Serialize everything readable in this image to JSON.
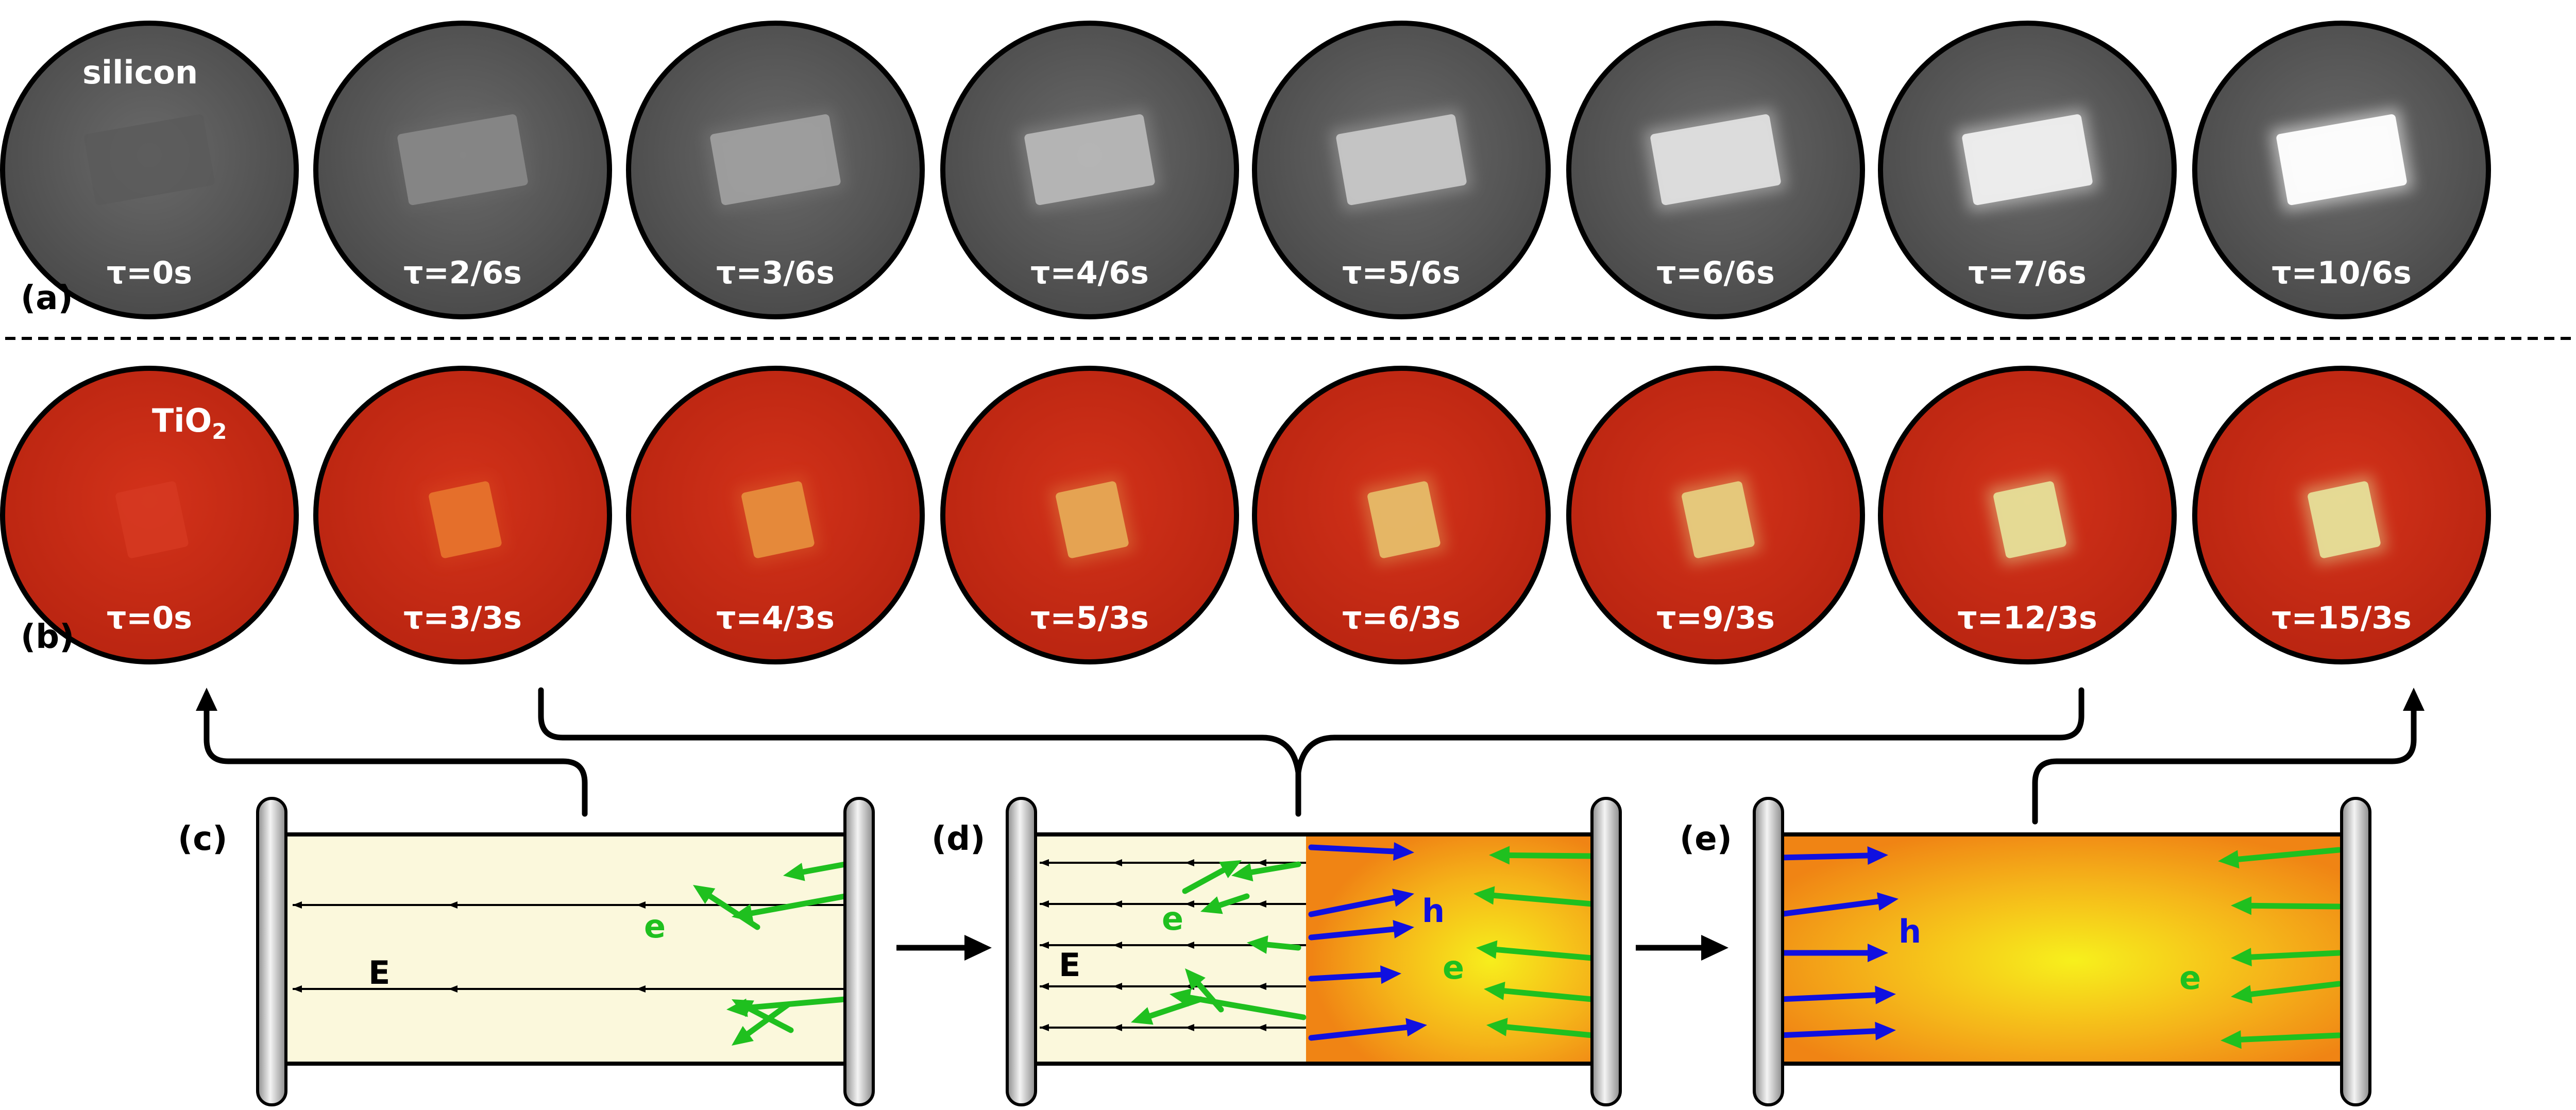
{
  "row_a": {
    "panel_label": "(a)",
    "material": "silicon",
    "frames": [
      "τ=0s",
      "τ=2/6s",
      "τ=3/6s",
      "τ=4/6s",
      "τ=5/6s",
      "τ=6/6s",
      "τ=7/6s",
      "τ=10/6s"
    ],
    "brightness": [
      0.0,
      0.25,
      0.4,
      0.55,
      0.65,
      0.8,
      0.9,
      1.0
    ]
  },
  "row_b": {
    "panel_label": "(b)",
    "material_base": "TiO",
    "material_sub": "2",
    "frames": [
      "τ=0s",
      "τ=3/3s",
      "τ=4/3s",
      "τ=5/3s",
      "τ=6/3s",
      "τ=9/3s",
      "τ=12/3s",
      "τ=15/3s"
    ],
    "brightness": [
      0.0,
      0.3,
      0.45,
      0.6,
      0.7,
      0.8,
      0.9,
      0.9
    ]
  },
  "diagrams": {
    "c": {
      "label": "(c)",
      "field": "E",
      "electron": "e"
    },
    "d": {
      "label": "(d)",
      "field": "E",
      "electron": "e",
      "hole": "h",
      "electron2": "e"
    },
    "e": {
      "label": "(e)",
      "hole": "h",
      "electron": "e"
    }
  },
  "colors": {
    "circle_gray": "#5e5e5e",
    "circle_red": "#c92b14",
    "cream": "#fbf8dc",
    "plasma_outer": "#f28c16",
    "plasma_inner": "#f5ec18",
    "electron_green": "#1fc01f",
    "hole_blue": "#1010e0"
  }
}
